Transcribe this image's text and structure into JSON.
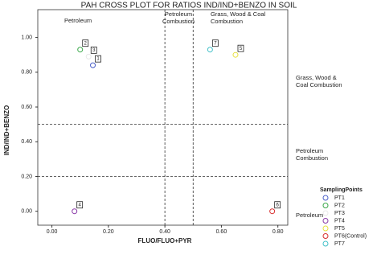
{
  "chart_data": {
    "type": "scatter",
    "title": "PAH CROSS PLOT FOR RATIOS IND/IND+BENZO IN SOIL",
    "x_label": "FLUO/FLUO+PYR",
    "y_label": "IND/IND+BENZO",
    "xlim": [
      -0.05,
      0.835
    ],
    "ylim": [
      -0.08,
      1.16
    ],
    "xticks": [
      {
        "value": 0,
        "label": "0.00"
      },
      {
        "value": 0.2,
        "label": "0.20"
      },
      {
        "value": 0.4,
        "label": "0.40"
      },
      {
        "value": 0.6,
        "label": "0.60"
      },
      {
        "value": 0.8,
        "label": "0.80"
      }
    ],
    "yticks": [
      {
        "value": 0,
        "label": "0.00"
      },
      {
        "value": 0.2,
        "label": "0.20"
      },
      {
        "value": 0.4,
        "label": "0.40"
      },
      {
        "value": 0.6,
        "label": "0.60"
      },
      {
        "value": 0.8,
        "label": "0.80"
      },
      {
        "value": 1,
        "label": "1.00"
      }
    ],
    "vlines": [
      0.4,
      0.5
    ],
    "hlines": [
      0.2,
      0.5
    ],
    "annotations": [
      [
        "Petroleum"
      ],
      [
        "Petroleum",
        "Combustion"
      ],
      [
        "Grass, Wood & Coal",
        "Combustion"
      ],
      [
        "Grass, Wood &",
        "Coal Combustion"
      ],
      [
        "Petroleum",
        "Combustion"
      ],
      [
        "Petroleum"
      ]
    ],
    "legend_title": "SamplingPoints",
    "series": [
      {
        "name": "PT1",
        "color": "#4a5fc8",
        "x": [
          0.145
        ],
        "values": [
          0.84
        ],
        "labels": [
          "1"
        ]
      },
      {
        "name": "PT2",
        "color": "#3aa84a",
        "x": [
          0.1
        ],
        "values": [
          0.93
        ],
        "labels": [
          "2"
        ]
      },
      {
        "name": "PT3",
        "color": "#e8e8e8",
        "x": [
          0.13
        ],
        "values": [
          0.89
        ],
        "labels": [
          "3"
        ]
      },
      {
        "name": "PT4",
        "color": "#8a3aa8",
        "x": [
          0.08
        ],
        "values": [
          0.0
        ],
        "labels": [
          "4"
        ]
      },
      {
        "name": "PT5",
        "color": "#e8e040",
        "x": [
          0.65
        ],
        "values": [
          0.9
        ],
        "labels": [
          "5"
        ]
      },
      {
        "name": "PT6(Control)",
        "color": "#d83030",
        "x": [
          0.78
        ],
        "values": [
          0.0
        ],
        "labels": [
          "6"
        ]
      },
      {
        "name": "PT7",
        "color": "#40c0c8",
        "x": [
          0.56
        ],
        "values": [
          0.93
        ],
        "labels": [
          "7"
        ]
      }
    ]
  }
}
